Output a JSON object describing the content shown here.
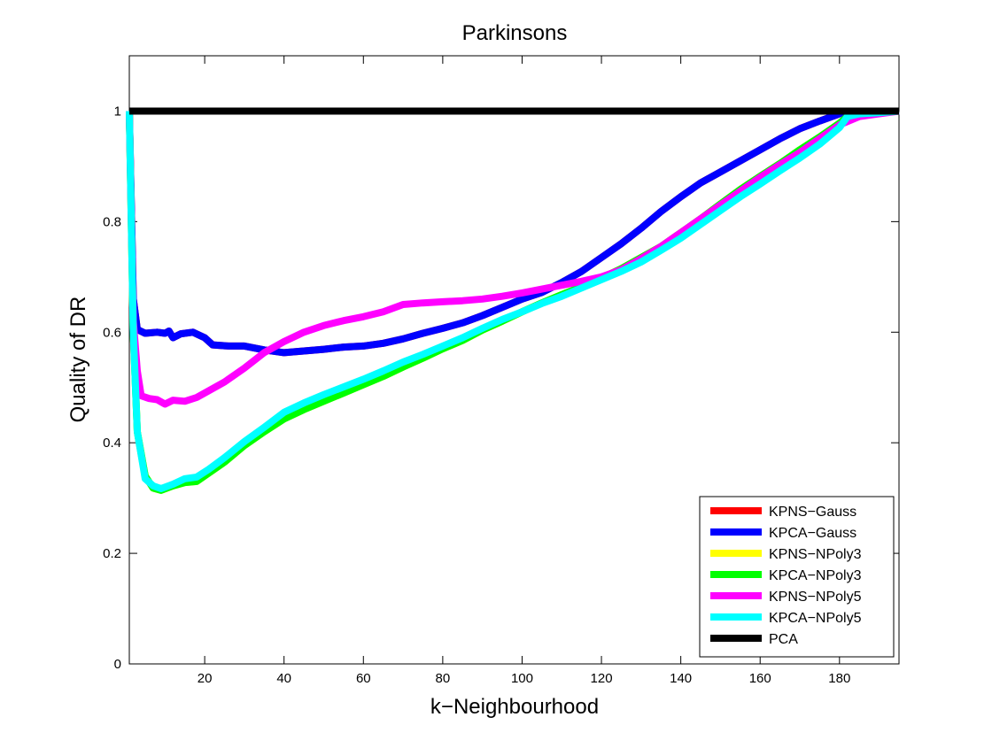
{
  "chart_data": {
    "type": "line",
    "title": "Parkinsons",
    "xlabel": "k−Neighbourhood",
    "ylabel": "Quality of DR",
    "xlim": [
      1,
      195
    ],
    "ylim": [
      0,
      1.1
    ],
    "xticks": [
      20,
      40,
      60,
      80,
      100,
      120,
      140,
      160,
      180
    ],
    "yticks": [
      0,
      0.2,
      0.4,
      0.6,
      0.8,
      1
    ],
    "xtick_labels": [
      "20",
      "40",
      "60",
      "80",
      "100",
      "120",
      "140",
      "160",
      "180"
    ],
    "ytick_labels": [
      "0",
      "0.2",
      "0.4",
      "0.6",
      "0.8",
      "1"
    ],
    "grid": false,
    "legend_position": "bottom-right",
    "series": [
      {
        "name": "KPNS−Gauss",
        "color": "#ff0000",
        "points": [
          [
            1,
            1.0
          ],
          [
            2,
            0.66
          ],
          [
            3,
            0.605
          ],
          [
            5,
            0.598
          ],
          [
            8,
            0.6
          ],
          [
            10,
            0.598
          ],
          [
            11,
            0.602
          ],
          [
            12,
            0.59
          ],
          [
            14,
            0.597
          ],
          [
            17,
            0.6
          ],
          [
            20,
            0.59
          ],
          [
            22,
            0.577
          ],
          [
            26,
            0.575
          ],
          [
            30,
            0.575
          ],
          [
            35,
            0.568
          ],
          [
            40,
            0.563
          ],
          [
            45,
            0.566
          ],
          [
            50,
            0.569
          ],
          [
            55,
            0.573
          ],
          [
            60,
            0.575
          ],
          [
            65,
            0.58
          ],
          [
            70,
            0.588
          ],
          [
            75,
            0.598
          ],
          [
            80,
            0.607
          ],
          [
            85,
            0.617
          ],
          [
            90,
            0.63
          ],
          [
            95,
            0.645
          ],
          [
            100,
            0.66
          ],
          [
            105,
            0.672
          ],
          [
            110,
            0.69
          ],
          [
            115,
            0.71
          ],
          [
            120,
            0.735
          ],
          [
            125,
            0.76
          ],
          [
            130,
            0.788
          ],
          [
            135,
            0.818
          ],
          [
            140,
            0.845
          ],
          [
            145,
            0.87
          ],
          [
            150,
            0.89
          ],
          [
            155,
            0.91
          ],
          [
            160,
            0.93
          ],
          [
            165,
            0.95
          ],
          [
            170,
            0.968
          ],
          [
            175,
            0.982
          ],
          [
            180,
            0.995
          ],
          [
            183,
            1.0
          ],
          [
            190,
            1.0
          ],
          [
            195,
            1.0
          ]
        ]
      },
      {
        "name": "KPCA−Gauss",
        "color": "#0000ff",
        "points": [
          [
            1,
            1.0
          ],
          [
            2,
            0.66
          ],
          [
            3,
            0.605
          ],
          [
            5,
            0.598
          ],
          [
            8,
            0.6
          ],
          [
            10,
            0.598
          ],
          [
            11,
            0.602
          ],
          [
            12,
            0.59
          ],
          [
            14,
            0.597
          ],
          [
            17,
            0.6
          ],
          [
            20,
            0.59
          ],
          [
            22,
            0.577
          ],
          [
            26,
            0.575
          ],
          [
            30,
            0.575
          ],
          [
            35,
            0.568
          ],
          [
            40,
            0.563
          ],
          [
            45,
            0.566
          ],
          [
            50,
            0.569
          ],
          [
            55,
            0.573
          ],
          [
            60,
            0.575
          ],
          [
            65,
            0.58
          ],
          [
            70,
            0.588
          ],
          [
            75,
            0.598
          ],
          [
            80,
            0.607
          ],
          [
            85,
            0.617
          ],
          [
            90,
            0.63
          ],
          [
            95,
            0.645
          ],
          [
            100,
            0.66
          ],
          [
            105,
            0.672
          ],
          [
            110,
            0.69
          ],
          [
            115,
            0.71
          ],
          [
            120,
            0.735
          ],
          [
            125,
            0.76
          ],
          [
            130,
            0.788
          ],
          [
            135,
            0.818
          ],
          [
            140,
            0.845
          ],
          [
            145,
            0.87
          ],
          [
            150,
            0.89
          ],
          [
            155,
            0.91
          ],
          [
            160,
            0.93
          ],
          [
            165,
            0.95
          ],
          [
            170,
            0.968
          ],
          [
            175,
            0.982
          ],
          [
            180,
            0.995
          ],
          [
            183,
            1.0
          ],
          [
            190,
            1.0
          ],
          [
            195,
            1.0
          ]
        ]
      },
      {
        "name": "KPNS−NPoly3",
        "color": "#ffff00",
        "points": [
          [
            1,
            1.0
          ],
          [
            2,
            0.6
          ],
          [
            3,
            0.42
          ],
          [
            5,
            0.34
          ],
          [
            7,
            0.318
          ],
          [
            9,
            0.314
          ],
          [
            12,
            0.322
          ],
          [
            15,
            0.328
          ],
          [
            18,
            0.33
          ],
          [
            21,
            0.345
          ],
          [
            25,
            0.365
          ],
          [
            30,
            0.395
          ],
          [
            35,
            0.42
          ],
          [
            40,
            0.443
          ],
          [
            45,
            0.46
          ],
          [
            50,
            0.475
          ],
          [
            55,
            0.49
          ],
          [
            60,
            0.505
          ],
          [
            65,
            0.52
          ],
          [
            70,
            0.537
          ],
          [
            75,
            0.553
          ],
          [
            80,
            0.57
          ],
          [
            85,
            0.585
          ],
          [
            90,
            0.604
          ],
          [
            95,
            0.62
          ],
          [
            100,
            0.637
          ],
          [
            105,
            0.653
          ],
          [
            110,
            0.668
          ],
          [
            115,
            0.682
          ],
          [
            120,
            0.698
          ],
          [
            125,
            0.715
          ],
          [
            130,
            0.735
          ],
          [
            135,
            0.755
          ],
          [
            140,
            0.78
          ],
          [
            145,
            0.805
          ],
          [
            150,
            0.832
          ],
          [
            155,
            0.858
          ],
          [
            160,
            0.882
          ],
          [
            165,
            0.905
          ],
          [
            170,
            0.93
          ],
          [
            175,
            0.953
          ],
          [
            180,
            0.978
          ],
          [
            182,
            0.99
          ],
          [
            185,
            0.993
          ],
          [
            190,
            0.997
          ],
          [
            195,
            1.0
          ]
        ]
      },
      {
        "name": "KPCA−NPoly3",
        "color": "#00ff00",
        "points": [
          [
            1,
            1.0
          ],
          [
            2,
            0.6
          ],
          [
            3,
            0.42
          ],
          [
            5,
            0.34
          ],
          [
            7,
            0.318
          ],
          [
            9,
            0.314
          ],
          [
            12,
            0.322
          ],
          [
            15,
            0.328
          ],
          [
            18,
            0.33
          ],
          [
            21,
            0.345
          ],
          [
            25,
            0.365
          ],
          [
            30,
            0.395
          ],
          [
            35,
            0.42
          ],
          [
            40,
            0.443
          ],
          [
            45,
            0.46
          ],
          [
            50,
            0.475
          ],
          [
            55,
            0.49
          ],
          [
            60,
            0.505
          ],
          [
            65,
            0.52
          ],
          [
            70,
            0.537
          ],
          [
            75,
            0.553
          ],
          [
            80,
            0.57
          ],
          [
            85,
            0.585
          ],
          [
            90,
            0.604
          ],
          [
            95,
            0.62
          ],
          [
            100,
            0.637
          ],
          [
            105,
            0.653
          ],
          [
            110,
            0.668
          ],
          [
            115,
            0.682
          ],
          [
            120,
            0.698
          ],
          [
            125,
            0.715
          ],
          [
            130,
            0.735
          ],
          [
            135,
            0.755
          ],
          [
            140,
            0.78
          ],
          [
            145,
            0.805
          ],
          [
            150,
            0.832
          ],
          [
            155,
            0.858
          ],
          [
            160,
            0.882
          ],
          [
            165,
            0.905
          ],
          [
            170,
            0.93
          ],
          [
            175,
            0.953
          ],
          [
            180,
            0.978
          ],
          [
            182,
            0.99
          ],
          [
            185,
            0.993
          ],
          [
            190,
            0.997
          ],
          [
            195,
            1.0
          ]
        ]
      },
      {
        "name": "KPNS−NPoly5",
        "color": "#ff00ff",
        "points": [
          [
            1,
            1.0
          ],
          [
            2,
            0.62
          ],
          [
            3,
            0.53
          ],
          [
            4,
            0.485
          ],
          [
            6,
            0.48
          ],
          [
            8,
            0.478
          ],
          [
            10,
            0.47
          ],
          [
            12,
            0.477
          ],
          [
            15,
            0.475
          ],
          [
            18,
            0.482
          ],
          [
            20,
            0.49
          ],
          [
            25,
            0.51
          ],
          [
            30,
            0.535
          ],
          [
            35,
            0.563
          ],
          [
            40,
            0.583
          ],
          [
            45,
            0.6
          ],
          [
            50,
            0.612
          ],
          [
            55,
            0.621
          ],
          [
            60,
            0.628
          ],
          [
            65,
            0.637
          ],
          [
            70,
            0.65
          ],
          [
            75,
            0.653
          ],
          [
            80,
            0.655
          ],
          [
            85,
            0.657
          ],
          [
            90,
            0.66
          ],
          [
            95,
            0.665
          ],
          [
            100,
            0.671
          ],
          [
            105,
            0.678
          ],
          [
            110,
            0.685
          ],
          [
            115,
            0.692
          ],
          [
            120,
            0.7
          ],
          [
            125,
            0.713
          ],
          [
            130,
            0.733
          ],
          [
            135,
            0.755
          ],
          [
            140,
            0.78
          ],
          [
            145,
            0.805
          ],
          [
            150,
            0.83
          ],
          [
            155,
            0.855
          ],
          [
            160,
            0.88
          ],
          [
            165,
            0.903
          ],
          [
            170,
            0.925
          ],
          [
            175,
            0.95
          ],
          [
            180,
            0.975
          ],
          [
            185,
            0.99
          ],
          [
            190,
            0.995
          ],
          [
            195,
            1.0
          ]
        ]
      },
      {
        "name": "KPCA−NPoly5",
        "color": "#00ffff",
        "points": [
          [
            1,
            1.0
          ],
          [
            2,
            0.6
          ],
          [
            3,
            0.42
          ],
          [
            5,
            0.335
          ],
          [
            7,
            0.322
          ],
          [
            9,
            0.317
          ],
          [
            12,
            0.325
          ],
          [
            15,
            0.335
          ],
          [
            18,
            0.338
          ],
          [
            21,
            0.352
          ],
          [
            25,
            0.373
          ],
          [
            30,
            0.402
          ],
          [
            35,
            0.428
          ],
          [
            40,
            0.455
          ],
          [
            45,
            0.472
          ],
          [
            50,
            0.487
          ],
          [
            55,
            0.501
          ],
          [
            60,
            0.515
          ],
          [
            65,
            0.53
          ],
          [
            70,
            0.546
          ],
          [
            75,
            0.56
          ],
          [
            80,
            0.575
          ],
          [
            85,
            0.59
          ],
          [
            90,
            0.607
          ],
          [
            95,
            0.623
          ],
          [
            100,
            0.637
          ],
          [
            105,
            0.652
          ],
          [
            110,
            0.665
          ],
          [
            115,
            0.68
          ],
          [
            120,
            0.695
          ],
          [
            125,
            0.71
          ],
          [
            130,
            0.727
          ],
          [
            135,
            0.748
          ],
          [
            140,
            0.77
          ],
          [
            145,
            0.795
          ],
          [
            150,
            0.82
          ],
          [
            155,
            0.845
          ],
          [
            160,
            0.868
          ],
          [
            165,
            0.892
          ],
          [
            170,
            0.915
          ],
          [
            175,
            0.94
          ],
          [
            180,
            0.97
          ],
          [
            182,
            0.99
          ],
          [
            185,
            0.995
          ],
          [
            190,
            0.997
          ],
          [
            195,
            1.0
          ]
        ]
      },
      {
        "name": "PCA",
        "color": "#000000",
        "points": [
          [
            1,
            1.0
          ],
          [
            195,
            1.0
          ]
        ]
      }
    ]
  }
}
